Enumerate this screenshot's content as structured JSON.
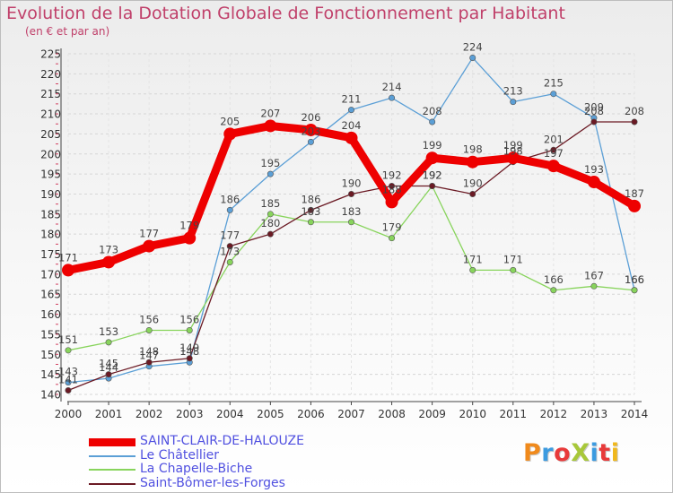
{
  "header": {
    "title": "Evolution de la Dotation Globale de Fonctionnement par Habitant",
    "subtitle": "(en € et par an)"
  },
  "logo": {
    "text": "ProXiti",
    "letter_colors": [
      "#f08a1c",
      "#3c9be0",
      "#e83a3a",
      "#a8c83a",
      "#3c9be0",
      "#e83a3a",
      "#f0b81c"
    ]
  },
  "chart_data": {
    "type": "line",
    "title": "Evolution de la Dotation Globale de Fonctionnement par Habitant",
    "subtitle": "(en € et par an)",
    "xlabel": "",
    "ylabel": "",
    "x": [
      "2000",
      "2001",
      "2002",
      "2003",
      "2004",
      "2005",
      "2006",
      "2007",
      "2008",
      "2009",
      "2010",
      "2011",
      "2012",
      "2013",
      "2014"
    ],
    "ylim": [
      140,
      225
    ],
    "yticks": [
      140,
      145,
      150,
      155,
      160,
      165,
      170,
      175,
      180,
      185,
      190,
      195,
      200,
      205,
      210,
      215,
      220,
      225
    ],
    "grid": "horizontal",
    "legend_position": "bottom-left",
    "series": [
      {
        "name": "SAINT-CLAIR-DE-HALOUZE",
        "color": "#ee0000",
        "values": [
          171,
          173,
          177,
          179,
          205,
          207,
          206,
          204,
          188,
          199,
          198,
          199,
          197,
          193,
          187
        ],
        "labels": [
          "171",
          "173",
          "177",
          "179",
          "205",
          "207",
          "206",
          "204",
          "188",
          "199",
          "198",
          "199",
          "197",
          "193",
          "187"
        ]
      },
      {
        "name": "Le Châtellier",
        "color": "#5b9fd6",
        "values": [
          143,
          144,
          147,
          148,
          186,
          195,
          203,
          211,
          214,
          208,
          224,
          213,
          215,
          209,
          166
        ],
        "labels": [
          "143",
          "144",
          "147",
          "148",
          "186",
          "195",
          "203",
          "211",
          "214",
          "208",
          "224",
          "213",
          "215",
          "209",
          "166"
        ]
      },
      {
        "name": "La Chapelle-Biche",
        "color": "#88d45c",
        "values": [
          151,
          153,
          156,
          156,
          173,
          185,
          183,
          183,
          179,
          192,
          171,
          171,
          166,
          167,
          166
        ],
        "labels": [
          "151",
          "153",
          "156",
          "156",
          "173",
          "185",
          "183",
          "183",
          "179",
          "192",
          "171",
          "171",
          "166",
          "167",
          "166"
        ]
      },
      {
        "name": "Saint-Bômer-les-Forges",
        "color": "#6b1a24",
        "values": [
          141,
          145,
          148,
          149,
          177,
          180,
          186,
          190,
          192,
          192,
          190,
          198,
          201,
          208,
          208
        ],
        "labels": [
          "141",
          "145",
          "148",
          "149",
          "177",
          "180",
          "186",
          "190",
          "192",
          "192",
          "190",
          "198",
          "201",
          "208",
          "208"
        ]
      }
    ]
  }
}
